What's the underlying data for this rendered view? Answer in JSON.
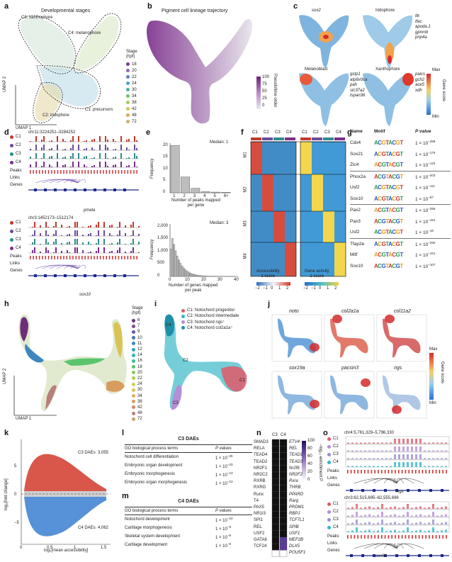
{
  "panel_letters": {
    "a": "a",
    "b": "b",
    "c": "c",
    "d": "d",
    "e": "e",
    "f": "f",
    "g": "g",
    "h": "h",
    "i": "i",
    "j": "j",
    "k": "k",
    "l": "l",
    "m": "m",
    "n": "n",
    "o": "o"
  },
  "a": {
    "title": "Developmental stages",
    "xlabel": "UMAP 1",
    "ylabel": "UMAP 2",
    "legend_title": "Stage\n(hpf)",
    "stages": [
      "18",
      "20",
      "22",
      "24",
      "30",
      "34",
      "38",
      "42",
      "48",
      "72"
    ],
    "stage_colors": [
      "#7a3b8c",
      "#8a6bb5",
      "#5e7fc0",
      "#4aa3c6",
      "#49b59b",
      "#6fbf6a",
      "#a6c95a",
      "#cfc45a",
      "#d8a955",
      "#c8b070"
    ],
    "clusters": [
      "C3: xanthophore",
      "C4: melanophore",
      "C1: precursors",
      "C2: iridophore"
    ]
  },
  "b": {
    "title": "Pigment cell lineage trajectory",
    "scale": [
      "100",
      "75",
      "50",
      "25",
      "0"
    ],
    "scale_label": "Pseudotime order"
  },
  "c": {
    "titles": [
      "sox2",
      "Iridophore",
      "Melanoblast",
      "Xanthophore"
    ],
    "iridophore_genes": [
      "ltk",
      "tfec",
      "apoda.1",
      "gpnmb",
      "pnp4a"
    ],
    "melanoblast_genes": [
      "gstp1",
      "atp6v0ca",
      "pah",
      "slc37a2",
      "tspan36"
    ],
    "xanthophore_genes": [
      "paics",
      "gch2",
      "aox5",
      "xdh"
    ],
    "scale_max": "Max",
    "scale_min": "Min",
    "scale_label": "Gene score"
  },
  "d": {
    "region1": "chr11:3224251–3284252",
    "region2": "chr3:1452173–1512174",
    "tracks": [
      "C1",
      "C2",
      "C3",
      "C4"
    ],
    "rows": [
      "Peaks",
      "Links",
      "Genes"
    ],
    "gene1": "pmela",
    "gene2": "sox10"
  },
  "e": {
    "top": {
      "median": "Median: 1",
      "xlabel": "Number of peaks mapped\nper gene",
      "ylabel": "Frequency",
      "yticks": [
        "0",
        "5",
        "10",
        "15",
        "20"
      ],
      "xticks": [
        "1",
        "2",
        "3",
        "4",
        "5",
        "6+"
      ],
      "chart_data": {
        "type": "bar",
        "categories": [
          "1",
          "2",
          "3",
          "4",
          "5",
          "6+"
        ],
        "values": [
          21,
          7,
          2,
          0.5,
          0.3,
          0.2
        ],
        "ylim": [
          0,
          22
        ]
      }
    },
    "bottom": {
      "median": "Median: 3",
      "xlabel": "Number of genes mapped\nper peak",
      "ylabel": "Frequency",
      "yticks": [
        "0",
        "500",
        "1,000",
        "1,500",
        "2,000"
      ],
      "xticks": [
        "0",
        "10",
        "20",
        "30",
        "40"
      ]
    }
  },
  "f": {
    "cols": [
      "C1",
      "C2",
      "C3",
      "C4",
      "C1",
      "C2",
      "C3",
      "C4"
    ],
    "modules": [
      "M1",
      "M2",
      "M3",
      "M4"
    ],
    "acc_label": "Accessibility\nz score",
    "gene_label": "Gene activity\nz score",
    "acc_ticks": [
      "−2",
      "−1",
      "0",
      "1",
      "2"
    ],
    "gene_ticks": [
      "−2",
      "−1",
      "0",
      "1",
      "2"
    ]
  },
  "g": {
    "headers": [
      "Name",
      "Motif",
      "P value"
    ],
    "rows": [
      {
        "name": "Cdx4",
        "p": "1 × 10",
        "e": "−258"
      },
      {
        "name": "Sox21",
        "p": "1 × 10",
        "e": "−175"
      },
      {
        "name": "Zic4",
        "p": "1 × 10",
        "e": "−122"
      },
      {
        "name": "Phox2a",
        "p": "1 × 10",
        "e": "−203"
      },
      {
        "name": "Usf2",
        "p": "1 × 10",
        "e": "−111"
      },
      {
        "name": "Sox10",
        "p": "1 × 10",
        "e": "−87"
      },
      {
        "name": "Pax2",
        "p": "1 × 10",
        "e": "−256"
      },
      {
        "name": "Pax3",
        "p": "1 × 10",
        "e": "−151"
      },
      {
        "name": "Usf2",
        "p": "1 × 10",
        "e": "−16"
      },
      {
        "name": "Tfap2e",
        "p": "1 × 10",
        "e": "−250"
      },
      {
        "name": "Mitf",
        "p": "1 × 10",
        "e": "−151"
      },
      {
        "name": "Sox10",
        "p": "1 × 10",
        "e": "−107"
      }
    ]
  },
  "h": {
    "xlabel": "UMAP 1",
    "ylabel": "UMAP 2",
    "legend_title": "Stage\n(hpf)",
    "stages": [
      "6",
      "7",
      "9",
      "10",
      "11",
      "12",
      "14",
      "16",
      "18",
      "20",
      "22",
      "24",
      "30",
      "34",
      "38",
      "42",
      "48",
      "72"
    ],
    "stage_colors": [
      "#6d2f7a",
      "#7d4a94",
      "#6a5aa8",
      "#4e6fb5",
      "#3d86c0",
      "#2fa0c4",
      "#2fb3b2",
      "#3bbd93",
      "#5cc36d",
      "#86c95a",
      "#a9ce55",
      "#c9cf55",
      "#d9c357",
      "#dfb158",
      "#d79c5e",
      "#c98a6a",
      "#b97d7a",
      "#c4a36e"
    ]
  },
  "i": {
    "labels": [
      "C1: Notochord progenitor",
      "C2: Notochord intermediate",
      "C3: Notochord ngs⁺",
      "C4: Notochord col2a1a⁺"
    ],
    "colors": [
      "#e05a6a",
      "#2fb8c8",
      "#b58fd6",
      "#1f8fa8"
    ],
    "points": [
      "C4",
      "C2",
      "C3",
      "C1"
    ]
  },
  "j": {
    "genes": [
      "noto",
      "col2a1a",
      "col11a2",
      "sox19a",
      "pacsin3",
      "ngs"
    ],
    "scale_max": "Max",
    "scale_min": "Min",
    "scale_label": "Gene score"
  },
  "k": {
    "c3": "C3 DAEs: 3,055",
    "c4": "C4 DAEs: 4,062",
    "ylabel": "log₂[fold change]",
    "xlabel": "log₂[mean accessibility]",
    "yticks": [
      "5",
      "0",
      "−5"
    ],
    "xticks": [
      "0",
      "0.5",
      "1",
      "1.5"
    ]
  },
  "l": {
    "title": "C3 DAEs",
    "col1": "GO biological process terms",
    "col2": "P values",
    "rows": [
      {
        "term": "Notochord cell differentiation",
        "p": "1 × 10",
        "e": "−26"
      },
      {
        "term": "Embryonic organ development",
        "p": "1 × 10",
        "e": "−23"
      },
      {
        "term": "Embryonic morphogenesis",
        "p": "1 × 10",
        "e": "−13"
      },
      {
        "term": "Embryonic organ morphogenesis",
        "p": "1 × 10",
        "e": "−13"
      }
    ]
  },
  "m": {
    "title": "C4 DAEs",
    "col1": "GO biological process terms",
    "col2": "P values",
    "rows": [
      {
        "term": "Notochord development",
        "p": "1 × 10",
        "e": "−10"
      },
      {
        "term": "Cartilage morphogenesis",
        "p": "1 × 10",
        "e": "−9"
      },
      {
        "term": "Skeletal system development",
        "p": "1 × 10",
        "e": "−9"
      },
      {
        "term": "Cartilage development",
        "p": "1 × 10",
        "e": "−8"
      }
    ]
  },
  "n": {
    "cols": [
      "C3",
      "C4"
    ],
    "left": [
      "SMAD3",
      "RELA",
      "TEAD4",
      "TEAD2",
      "NR2F1",
      "NR2C2",
      "RXRB",
      "RXRG",
      "Runx",
      "T4",
      "PAX5",
      "NR1I3",
      "SPI1",
      "REL",
      "USF2",
      "GATA6",
      "TCF24"
    ],
    "right": [
      "ETV4",
      "REL",
      "TEAD1",
      "TEAD3",
      "Nr2f6",
      "NR2F2",
      "Rxra",
      "THRB",
      "PPARD",
      "Rarg",
      "PRDM1",
      "RBPJ",
      "TCF7L1",
      "SPIB",
      "USF1",
      "MEF2B",
      "DLX5",
      "POU5F1"
    ],
    "scale": [
      "100",
      "80",
      "60",
      "40",
      "20",
      "0"
    ],
    "scale_label": "−log₁₀ enrichment P"
  },
  "o": {
    "region1": "chr4:5,761,329–5,796,330",
    "region2": "chr3:62,515,695–62,555,696",
    "tracks": [
      "C1",
      "C2",
      "C3",
      "C4"
    ],
    "rows": [
      "Peaks",
      "Links",
      "Genes"
    ],
    "gene1": "ngs",
    "gene2": "sox9b",
    "colors": [
      "#e05a6a",
      "#b58fd6",
      "#9a8fd0",
      "#2fb8c8"
    ]
  }
}
